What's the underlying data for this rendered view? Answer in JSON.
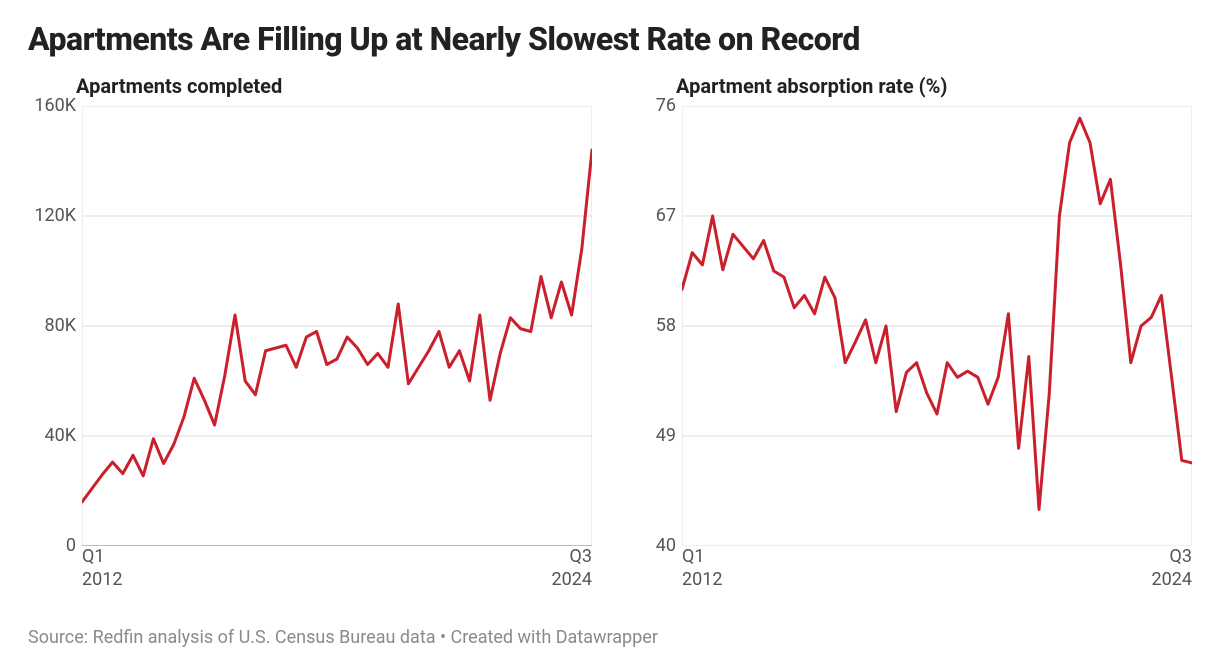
{
  "title": "Apartments Are Filling Up at Nearly Slowest Rate on Record",
  "footer": "Source: Redfin analysis of U.S. Census Bureau data • Created with Datawrapper",
  "chart_left": {
    "type": "line",
    "title": "Apartments completed",
    "y_ticks": [
      0,
      40000,
      80000,
      120000,
      160000
    ],
    "y_tick_labels": [
      "0",
      "40K",
      "80K",
      "120K",
      "160K"
    ],
    "ylim": [
      0,
      160000
    ],
    "x_count": 51,
    "x_start_label": "Q1\n2012",
    "x_end_label": "Q3\n2024",
    "line_color": "#c9202c",
    "line_width": 3,
    "grid_color": "#dcdcdc",
    "baseline_color": "#777777",
    "background_color": "#ffffff",
    "values": [
      16000,
      21000,
      26000,
      30500,
      26300,
      33000,
      25500,
      39000,
      30000,
      37000,
      47000,
      61000,
      53000,
      44000,
      62000,
      84000,
      60000,
      55000,
      71000,
      72000,
      73000,
      65000,
      76000,
      78000,
      66000,
      68000,
      76000,
      72000,
      66000,
      70000,
      65000,
      88000,
      59000,
      65000,
      71000,
      78000,
      65000,
      71000,
      60000,
      84000,
      53000,
      70000,
      83000,
      79000,
      78000,
      98000,
      83000,
      96000,
      84000,
      108000,
      144000
    ]
  },
  "chart_right": {
    "type": "line",
    "title": "Apartment absorption rate (%)",
    "y_ticks": [
      40,
      49,
      58,
      67,
      76
    ],
    "y_tick_labels": [
      "40",
      "49",
      "58",
      "67",
      "76"
    ],
    "ylim": [
      40,
      76
    ],
    "x_count": 51,
    "x_start_label": "Q1\n2012",
    "x_end_label": "Q3\n2024",
    "line_color": "#c9202c",
    "line_width": 3,
    "grid_color": "#dcdcdc",
    "baseline_color": "#777777",
    "background_color": "#ffffff",
    "values": [
      61.0,
      64.0,
      63.0,
      67.0,
      62.6,
      65.5,
      64.5,
      63.5,
      65.0,
      62.5,
      62.0,
      59.5,
      60.5,
      59.0,
      62.0,
      60.3,
      55.0,
      56.7,
      58.5,
      55.0,
      58.0,
      51.0,
      54.2,
      55.0,
      52.5,
      50.8,
      55.0,
      53.8,
      54.3,
      53.8,
      51.6,
      53.8,
      59.0,
      48.0,
      55.5,
      43.0,
      52.4,
      67.0,
      73.0,
      75.0,
      73.0,
      68.0,
      70.0,
      63.0,
      55.0,
      58.0,
      58.7,
      60.5,
      53.8,
      47.0,
      46.8
    ]
  },
  "layout": {
    "y_axis_width": 52,
    "plot_left_inset": 54,
    "plot_bottom_space": 44,
    "title_fontsize": 32,
    "chart_title_fontsize": 20,
    "axis_fontsize": 18,
    "footer_fontsize": 18,
    "footer_color": "#8a8a8a"
  }
}
